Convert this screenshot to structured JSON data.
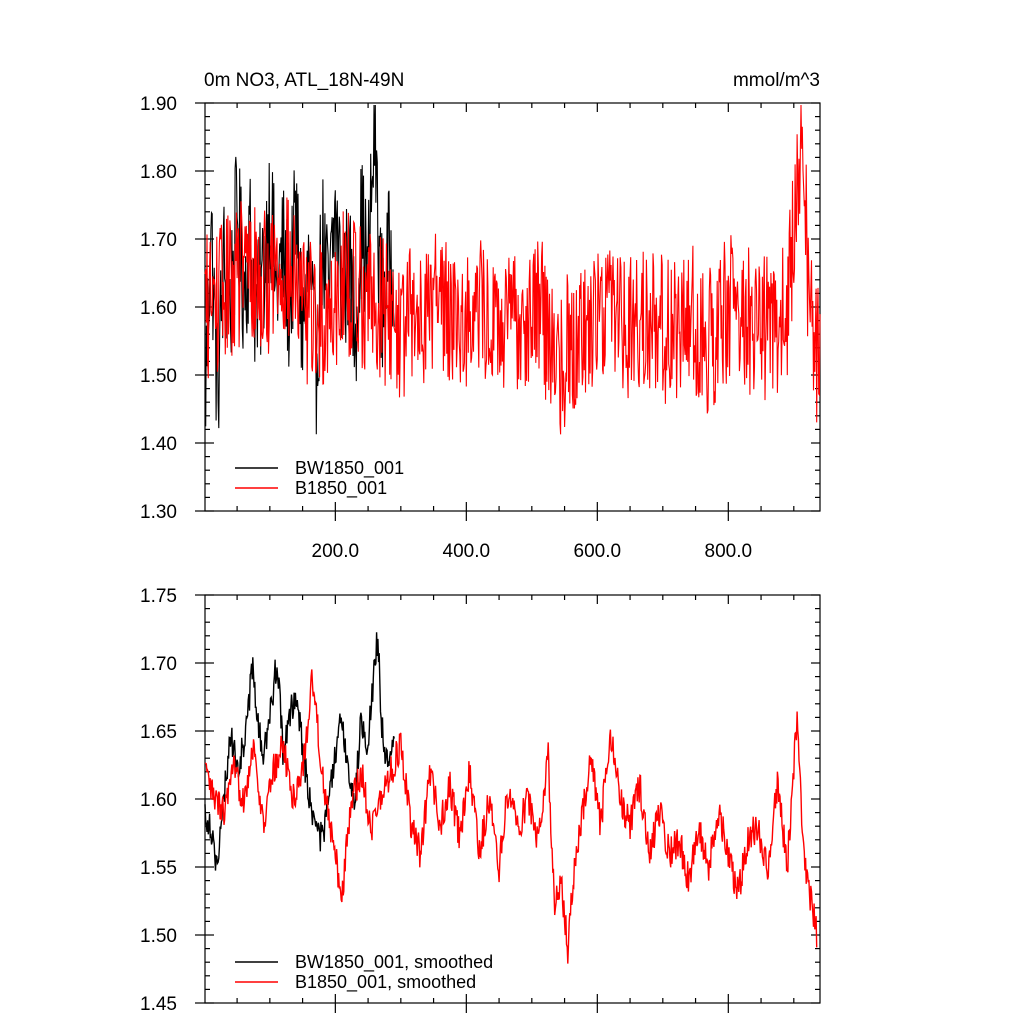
{
  "chart_data": [
    {
      "type": "line",
      "title": "0m NO3, ATL_18N-49N",
      "units": "mmol/m^3",
      "xlim": [
        1,
        940
      ],
      "ylim": [
        1.3,
        1.9
      ],
      "yticks": [
        "1.30",
        "1.40",
        "1.50",
        "1.60",
        "1.70",
        "1.80",
        "1.90"
      ],
      "xticks": [
        "200.0",
        "400.0",
        "600.0",
        "800.0"
      ],
      "grid": false,
      "legend_position": "bottom-left",
      "series": [
        {
          "name": "BW1850_001",
          "color": "#000000",
          "x_start": 1,
          "x_end": 290,
          "x": [
            1,
            10,
            20,
            30,
            40,
            50,
            60,
            70,
            80,
            90,
            100,
            110,
            120,
            130,
            140,
            150,
            160,
            170,
            180,
            190,
            200,
            210,
            220,
            230,
            240,
            250,
            260,
            270,
            280,
            290
          ],
          "values": [
            1.46,
            1.72,
            1.48,
            1.66,
            1.6,
            1.74,
            1.63,
            1.7,
            1.58,
            1.65,
            1.76,
            1.62,
            1.68,
            1.6,
            1.73,
            1.56,
            1.66,
            1.5,
            1.7,
            1.6,
            1.74,
            1.62,
            1.66,
            1.57,
            1.72,
            1.64,
            1.87,
            1.6,
            1.66,
            1.68
          ]
        },
        {
          "name": "B1850_001",
          "color": "#ff0000",
          "x_start": 1,
          "x_end": 940,
          "x": [
            1,
            30,
            60,
            90,
            120,
            150,
            180,
            210,
            240,
            270,
            300,
            330,
            360,
            390,
            420,
            450,
            480,
            510,
            530,
            545,
            560,
            590,
            620,
            650,
            680,
            710,
            740,
            770,
            800,
            830,
            860,
            890,
            910,
            925,
            940
          ],
          "values": [
            1.6,
            1.62,
            1.66,
            1.63,
            1.67,
            1.6,
            1.58,
            1.64,
            1.62,
            1.6,
            1.57,
            1.59,
            1.62,
            1.58,
            1.6,
            1.56,
            1.58,
            1.61,
            1.54,
            1.52,
            1.55,
            1.58,
            1.62,
            1.57,
            1.59,
            1.56,
            1.59,
            1.55,
            1.6,
            1.58,
            1.57,
            1.59,
            1.85,
            1.6,
            1.5
          ]
        }
      ]
    },
    {
      "type": "line",
      "title": "",
      "xlim": [
        1,
        940
      ],
      "ylim": [
        1.45,
        1.75
      ],
      "yticks": [
        "1.45",
        "1.50",
        "1.55",
        "1.60",
        "1.65",
        "1.70",
        "1.75"
      ],
      "grid": false,
      "legend_position": "bottom-left",
      "series": [
        {
          "name": "BW1850_001, smoothed",
          "color": "#000000",
          "x": [
            1,
            10,
            20,
            30,
            40,
            50,
            60,
            70,
            75,
            80,
            90,
            100,
            110,
            115,
            120,
            130,
            140,
            150,
            160,
            170,
            180,
            190,
            200,
            210,
            220,
            230,
            240,
            250,
            260,
            265,
            270,
            280,
            290
          ],
          "values": [
            1.59,
            1.58,
            1.55,
            1.6,
            1.65,
            1.62,
            1.64,
            1.68,
            1.7,
            1.66,
            1.63,
            1.66,
            1.7,
            1.68,
            1.63,
            1.66,
            1.68,
            1.64,
            1.6,
            1.58,
            1.57,
            1.6,
            1.63,
            1.66,
            1.62,
            1.6,
            1.66,
            1.64,
            1.7,
            1.72,
            1.66,
            1.62,
            1.64
          ]
        },
        {
          "name": "B1850_001, smoothed",
          "color": "#ff0000",
          "x": [
            1,
            15,
            30,
            45,
            60,
            75,
            90,
            105,
            120,
            135,
            150,
            165,
            180,
            195,
            210,
            225,
            240,
            255,
            270,
            285,
            300,
            315,
            330,
            345,
            360,
            375,
            390,
            405,
            420,
            435,
            450,
            465,
            480,
            495,
            510,
            525,
            535,
            545,
            555,
            565,
            575,
            590,
            605,
            620,
            635,
            650,
            665,
            680,
            695,
            710,
            725,
            740,
            755,
            770,
            785,
            800,
            815,
            830,
            845,
            860,
            875,
            890,
            905,
            915,
            925,
            935
          ],
          "values": [
            1.62,
            1.6,
            1.59,
            1.62,
            1.6,
            1.64,
            1.58,
            1.62,
            1.64,
            1.6,
            1.62,
            1.69,
            1.62,
            1.57,
            1.53,
            1.6,
            1.62,
            1.58,
            1.6,
            1.62,
            1.64,
            1.58,
            1.56,
            1.62,
            1.58,
            1.61,
            1.57,
            1.62,
            1.56,
            1.6,
            1.55,
            1.61,
            1.58,
            1.6,
            1.57,
            1.63,
            1.52,
            1.54,
            1.49,
            1.55,
            1.58,
            1.63,
            1.58,
            1.65,
            1.6,
            1.58,
            1.61,
            1.56,
            1.59,
            1.56,
            1.57,
            1.54,
            1.58,
            1.55,
            1.59,
            1.56,
            1.53,
            1.57,
            1.58,
            1.55,
            1.61,
            1.55,
            1.66,
            1.56,
            1.53,
            1.5
          ]
        }
      ]
    }
  ]
}
